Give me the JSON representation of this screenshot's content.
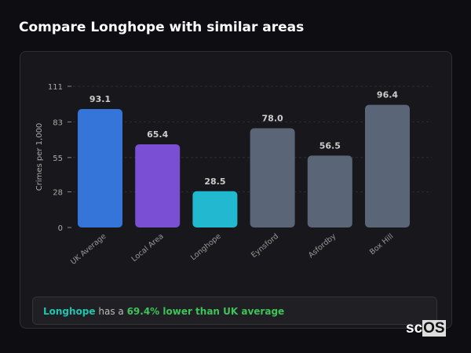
{
  "title": "Compare Longhope with similar areas",
  "chart_data": {
    "type": "bar",
    "ylabel": "Crimes per 1,000",
    "yticks": [
      0,
      28,
      55,
      83,
      111
    ],
    "ylim": [
      0,
      111
    ],
    "grid": true,
    "categories": [
      "UK Average",
      "Local Area",
      "Longhope",
      "Eynsford",
      "Asfordby",
      "Box Hill"
    ],
    "values": [
      93.1,
      65.4,
      28.5,
      78.0,
      56.5,
      96.4
    ],
    "colors": [
      "#3574d9",
      "#7b4fd4",
      "#21b8d0",
      "#5a6577",
      "#5a6577",
      "#5a6577"
    ]
  },
  "footer": {
    "place": "Longhope",
    "middle": " has a ",
    "stat": "69.4% lower than UK average"
  },
  "logo": {
    "text": "scOS"
  }
}
